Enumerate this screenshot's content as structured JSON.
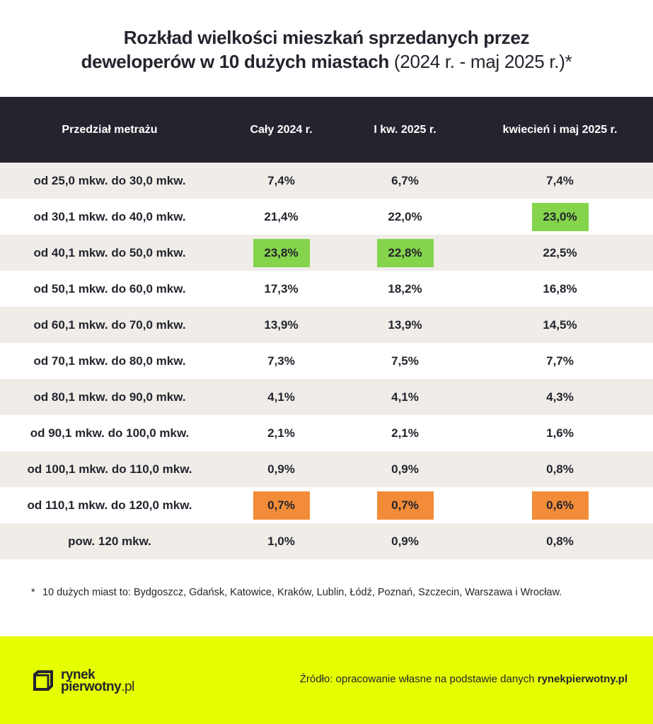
{
  "title": {
    "line1": "Rozkład wielkości mieszkań sprzedanych przez",
    "line2_bold": "deweloperów w 10 dużych miastach",
    "line2_light": " (2024 r. - maj 2025 r.)*"
  },
  "colors": {
    "header_bg": "#24242e",
    "row_alt": "#f0ede9",
    "highlight_max": "#84d44c",
    "highlight_min": "#f28c38",
    "footer_bg": "#e6ff00"
  },
  "chart_data": {
    "type": "table",
    "title": "Rozkład wielkości mieszkań sprzedanych przez deweloperów w 10 dużych miastach (2024 r. - maj 2025 r.)*",
    "columns": [
      "Przedział metrażu",
      "Cały 2024 r.",
      "I kw. 2025 r.",
      "kwiecień i maj 2025 r."
    ],
    "rows": [
      {
        "label": "od 25,0 mkw. do 30,0 mkw.",
        "values": [
          "7,4%",
          "6,7%",
          "7,4%"
        ],
        "highlight": [
          "",
          "",
          ""
        ]
      },
      {
        "label": "od 30,1 mkw. do 40,0 mkw.",
        "values": [
          "21,4%",
          "22,0%",
          "23,0%"
        ],
        "highlight": [
          "",
          "",
          "max"
        ]
      },
      {
        "label": "od 40,1 mkw. do 50,0 mkw.",
        "values": [
          "23,8%",
          "22,8%",
          "22,5%"
        ],
        "highlight": [
          "max",
          "max",
          ""
        ]
      },
      {
        "label": "od 50,1 mkw. do 60,0 mkw.",
        "values": [
          "17,3%",
          "18,2%",
          "16,8%"
        ],
        "highlight": [
          "",
          "",
          ""
        ]
      },
      {
        "label": "od 60,1 mkw. do 70,0 mkw.",
        "values": [
          "13,9%",
          "13,9%",
          "14,5%"
        ],
        "highlight": [
          "",
          "",
          ""
        ]
      },
      {
        "label": "od 70,1 mkw. do 80,0 mkw.",
        "values": [
          "7,3%",
          "7,5%",
          "7,7%"
        ],
        "highlight": [
          "",
          "",
          ""
        ]
      },
      {
        "label": "od 80,1 mkw. do 90,0 mkw.",
        "values": [
          "4,1%",
          "4,1%",
          "4,3%"
        ],
        "highlight": [
          "",
          "",
          ""
        ]
      },
      {
        "label": "od 90,1 mkw. do 100,0 mkw.",
        "values": [
          "2,1%",
          "2,1%",
          "1,6%"
        ],
        "highlight": [
          "",
          "",
          ""
        ]
      },
      {
        "label": "od 100,1 mkw. do 110,0 mkw.",
        "values": [
          "0,9%",
          "0,9%",
          "0,8%"
        ],
        "highlight": [
          "",
          "",
          ""
        ]
      },
      {
        "label": "od 110,1 mkw. do 120,0 mkw.",
        "values": [
          "0,7%",
          "0,7%",
          "0,6%"
        ],
        "highlight": [
          "min",
          "min",
          "min"
        ]
      },
      {
        "label": "pow. 120 mkw.",
        "values": [
          "1,0%",
          "0,9%",
          "0,8%"
        ],
        "highlight": [
          "",
          "",
          ""
        ]
      }
    ]
  },
  "footnote": {
    "marker": "*",
    "text": "10 dużych miast to: Bydgoszcz, Gdańsk, Katowice, Kraków, Lublin, Łódź, Poznań, Szczecin, Warszawa i Wrocław."
  },
  "footer": {
    "logo_line1": "rynek",
    "logo_line2_bold": "pierwotny",
    "logo_line2_light": ".pl",
    "source_prefix": "Źródło: opracowanie własne na podstawie danych ",
    "source_bold": "rynekpierwotny.pl"
  }
}
